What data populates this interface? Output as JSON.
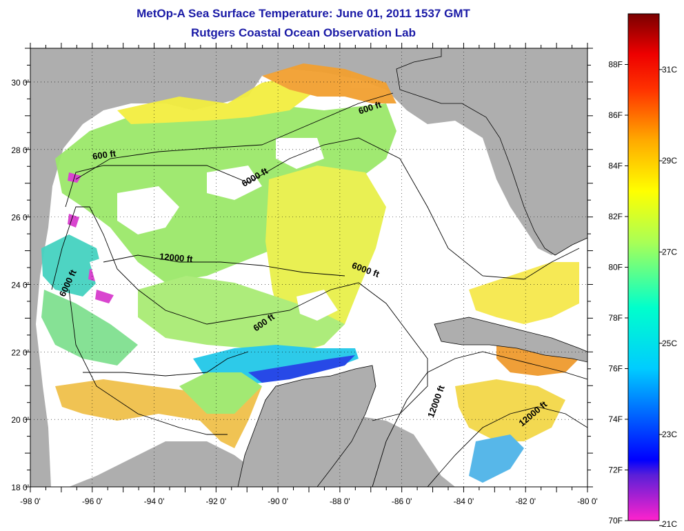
{
  "title_line1": "MetOp-A Sea Surface Temperature:  June 01, 2011 1537 GMT",
  "title_line2": "Rutgers Coastal Ocean Observation Lab",
  "map": {
    "lon_range": [
      -98,
      -80
    ],
    "lat_range": [
      18,
      31
    ],
    "lon_ticks": [
      {
        "value": -98,
        "label": "-98 0'"
      },
      {
        "value": -96,
        "label": "-96 0'"
      },
      {
        "value": -94,
        "label": "-94 0'"
      },
      {
        "value": -92,
        "label": "-92 0'"
      },
      {
        "value": -90,
        "label": "-90 0'"
      },
      {
        "value": -88,
        "label": "-88 0'"
      },
      {
        "value": -86,
        "label": "-86 0'"
      },
      {
        "value": -84,
        "label": "-84 0'"
      },
      {
        "value": -82,
        "label": "-82 0'"
      },
      {
        "value": -80,
        "label": "-80 0'"
      }
    ],
    "lat_ticks": [
      {
        "value": 18,
        "label": "18 0'"
      },
      {
        "value": 20,
        "label": "20 0'"
      },
      {
        "value": 22,
        "label": "22 0'"
      },
      {
        "value": 24,
        "label": "24 0'"
      },
      {
        "value": 26,
        "label": "26 0'"
      },
      {
        "value": 28,
        "label": "28 0'"
      },
      {
        "value": 30,
        "label": "30 0'"
      }
    ],
    "contour_labels": [
      {
        "text": "600 ft",
        "lon": -87.0,
        "lat": 29.15,
        "angle": -18
      },
      {
        "text": "600 ft",
        "lon": -95.6,
        "lat": 27.75,
        "angle": -8
      },
      {
        "text": "6000 ft",
        "lon": -90.7,
        "lat": 27.1,
        "angle": -30
      },
      {
        "text": "12000 ft",
        "lon": -93.3,
        "lat": 24.7,
        "angle": 5
      },
      {
        "text": "6000 ft",
        "lon": -87.2,
        "lat": 24.35,
        "angle": 20
      },
      {
        "text": "6000 ft",
        "lon": -96.7,
        "lat": 24.0,
        "angle": -65
      },
      {
        "text": "600 ft",
        "lon": -90.4,
        "lat": 22.8,
        "angle": -35
      },
      {
        "text": "12000 ft",
        "lon": -84.8,
        "lat": 20.5,
        "angle": -70
      },
      {
        "text": "12000 ft",
        "lon": -81.7,
        "lat": 20.1,
        "angle": -40
      }
    ],
    "colors": {
      "land": "#aeaeae",
      "cloud": "#ffffff",
      "frame": "#000000"
    }
  },
  "colorbar": {
    "stops": [
      {
        "pos": 0.0,
        "color": "#ff22cc"
      },
      {
        "pos": 0.09,
        "color": "#5a1fd8"
      },
      {
        "pos": 0.12,
        "color": "#0000ff"
      },
      {
        "pos": 0.3,
        "color": "#00ccff"
      },
      {
        "pos": 0.42,
        "color": "#00ffcc"
      },
      {
        "pos": 0.55,
        "color": "#aaff55"
      },
      {
        "pos": 0.65,
        "color": "#ffff00"
      },
      {
        "pos": 0.75,
        "color": "#ffaa00"
      },
      {
        "pos": 0.85,
        "color": "#ff3300"
      },
      {
        "pos": 0.92,
        "color": "#ee0000"
      },
      {
        "pos": 1.0,
        "color": "#7a0000"
      }
    ],
    "f_labels": [
      {
        "value": 70,
        "label": "70F"
      },
      {
        "value": 72,
        "label": "72F"
      },
      {
        "value": 74,
        "label": "74F"
      },
      {
        "value": 76,
        "label": "76F"
      },
      {
        "value": 78,
        "label": "78F"
      },
      {
        "value": 80,
        "label": "80F"
      },
      {
        "value": 82,
        "label": "82F"
      },
      {
        "value": 84,
        "label": "84F"
      },
      {
        "value": 86,
        "label": "86F"
      },
      {
        "value": 88,
        "label": "88F"
      }
    ],
    "c_labels": [
      {
        "value": 21,
        "label": "21C"
      },
      {
        "value": 23,
        "label": "23C"
      },
      {
        "value": 25,
        "label": "25C"
      },
      {
        "value": 27,
        "label": "27C"
      },
      {
        "value": 29,
        "label": "29C"
      },
      {
        "value": 31,
        "label": "31C"
      }
    ],
    "f_range": [
      70,
      90
    ]
  }
}
